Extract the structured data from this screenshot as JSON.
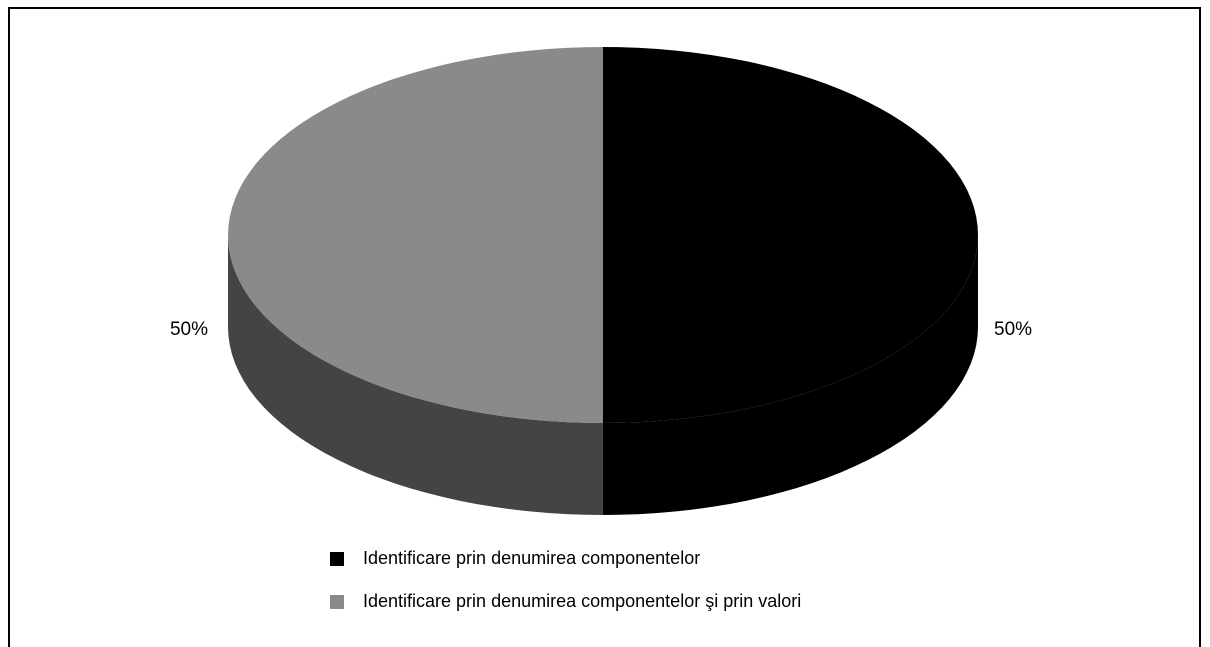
{
  "chart_data": {
    "type": "pie",
    "style": "3d",
    "categories": [
      "Identificare prin denumirea componentelor",
      "Identificare prin denumirea componentelor şi prin valori"
    ],
    "values": [
      50,
      50
    ],
    "data_labels": [
      "50%",
      "50%"
    ],
    "colors": [
      "#000000",
      "#8a8a8a"
    ],
    "side_colors": [
      "#000000",
      "#444444"
    ],
    "legend_position": "bottom-left"
  }
}
